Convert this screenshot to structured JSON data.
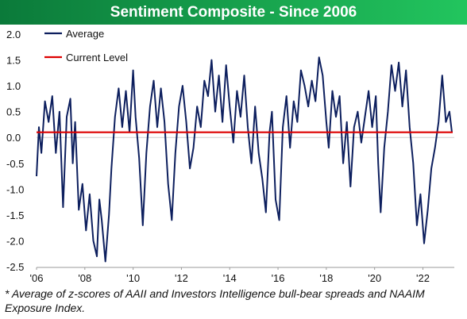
{
  "colors": {
    "title_gradient_start": "#0b7a3a",
    "title_gradient_end": "#22c55e",
    "series_line": "#0d1f5e",
    "current_level_line": "#dd0000",
    "title_text": "#ffffff"
  },
  "chart_data": {
    "type": "line",
    "title": "Sentiment Composite - Since 2006",
    "xlabel": "",
    "ylabel": "",
    "x_tick_labels": [
      "'06",
      "'08",
      "'10",
      "'12",
      "'14",
      "'16",
      "'18",
      "'20",
      "'22"
    ],
    "x_tick_years": [
      2006,
      2008,
      2010,
      2012,
      2014,
      2016,
      2018,
      2020,
      2022
    ],
    "xlim": [
      2006.0,
      2023.3
    ],
    "ylim": [
      -2.5,
      2.0
    ],
    "y_ticks": [
      "2.0",
      "1.5",
      "1.0",
      "0.5",
      "0.0",
      "-0.5",
      "-1.0",
      "-1.5",
      "-2.0",
      "-2.5"
    ],
    "y_tick_values": [
      2.0,
      1.5,
      1.0,
      0.5,
      0.0,
      -0.5,
      -1.0,
      -1.5,
      -2.0,
      -2.5
    ],
    "grid": false,
    "zero_line": true,
    "legend_position": "top-left",
    "current_level": {
      "name": "Current Level",
      "value": 0.1
    },
    "series": [
      {
        "name": "Average",
        "x": [
          2006.0,
          2006.1,
          2006.2,
          2006.35,
          2006.5,
          2006.65,
          2006.8,
          2006.95,
          2007.1,
          2007.25,
          2007.4,
          2007.5,
          2007.6,
          2007.75,
          2007.9,
          2008.05,
          2008.2,
          2008.35,
          2008.5,
          2008.6,
          2008.7,
          2008.85,
          2009.0,
          2009.1,
          2009.25,
          2009.4,
          2009.55,
          2009.7,
          2009.85,
          2010.0,
          2010.1,
          2010.25,
          2010.4,
          2010.55,
          2010.7,
          2010.85,
          2011.0,
          2011.15,
          2011.3,
          2011.45,
          2011.6,
          2011.75,
          2011.9,
          2012.05,
          2012.2,
          2012.35,
          2012.5,
          2012.65,
          2012.8,
          2012.95,
          2013.1,
          2013.25,
          2013.4,
          2013.55,
          2013.7,
          2013.85,
          2014.0,
          2014.15,
          2014.3,
          2014.45,
          2014.6,
          2014.75,
          2014.9,
          2015.05,
          2015.2,
          2015.35,
          2015.5,
          2015.65,
          2015.75,
          2015.9,
          2016.05,
          2016.2,
          2016.35,
          2016.5,
          2016.65,
          2016.8,
          2016.95,
          2017.1,
          2017.25,
          2017.4,
          2017.55,
          2017.7,
          2017.85,
          2018.0,
          2018.1,
          2018.25,
          2018.4,
          2018.55,
          2018.7,
          2018.85,
          2019.0,
          2019.15,
          2019.3,
          2019.45,
          2019.6,
          2019.75,
          2019.9,
          2020.05,
          2020.15,
          2020.25,
          2020.4,
          2020.55,
          2020.7,
          2020.85,
          2021.0,
          2021.15,
          2021.3,
          2021.45,
          2021.6,
          2021.75,
          2021.9,
          2022.05,
          2022.2,
          2022.35,
          2022.5,
          2022.65,
          2022.8,
          2022.95,
          2023.1,
          2023.2
        ],
        "values": [
          -0.75,
          0.2,
          -0.3,
          0.7,
          0.3,
          0.8,
          -0.3,
          0.5,
          -1.35,
          0.4,
          0.75,
          -0.5,
          0.3,
          -1.4,
          -0.9,
          -1.8,
          -1.1,
          -2.0,
          -2.3,
          -1.2,
          -1.6,
          -2.4,
          -1.5,
          -0.6,
          0.4,
          0.95,
          0.2,
          0.9,
          0.1,
          1.3,
          0.4,
          -0.4,
          -1.7,
          -0.3,
          0.6,
          1.1,
          0.2,
          0.95,
          0.3,
          -0.9,
          -1.6,
          -0.3,
          0.6,
          1.0,
          0.3,
          -0.6,
          -0.2,
          0.6,
          0.2,
          1.1,
          0.8,
          1.5,
          0.5,
          1.2,
          0.3,
          1.4,
          0.6,
          -0.1,
          0.9,
          0.4,
          1.2,
          0.2,
          -0.5,
          0.6,
          -0.3,
          -0.8,
          -1.45,
          0.1,
          0.5,
          -1.2,
          -1.6,
          0.2,
          0.8,
          -0.2,
          0.7,
          0.3,
          1.3,
          1.0,
          0.6,
          1.1,
          0.7,
          1.55,
          1.2,
          0.3,
          -0.2,
          0.9,
          0.4,
          0.8,
          -0.5,
          0.3,
          -0.95,
          0.2,
          0.5,
          -0.1,
          0.4,
          0.9,
          0.2,
          0.8,
          -0.5,
          -1.45,
          -0.2,
          0.5,
          1.4,
          0.9,
          1.45,
          0.6,
          1.3,
          0.2,
          -0.5,
          -1.7,
          -1.1,
          -2.05,
          -1.4,
          -0.6,
          -0.2,
          0.3,
          1.2,
          0.3,
          0.5,
          0.1
        ]
      }
    ]
  },
  "legend": {
    "average_label": "Average",
    "current_label": "Current Level"
  },
  "footnote": "* Average of z-scores of AAII and Investors Intelligence bull-bear spreads and NAAIM Exposure Index."
}
